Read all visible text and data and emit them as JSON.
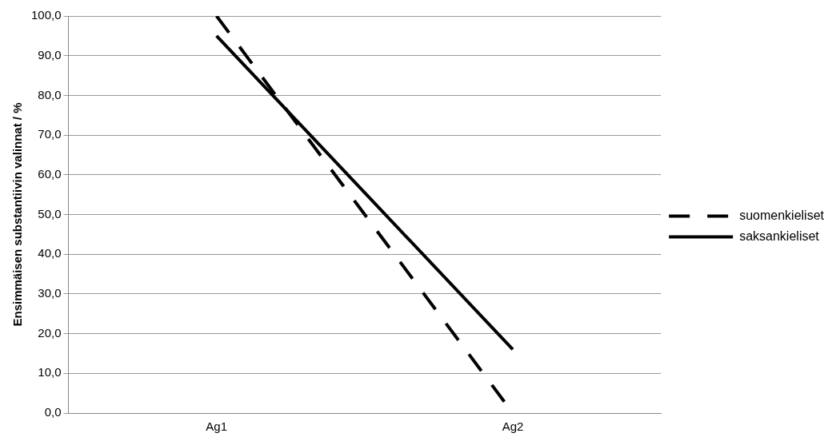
{
  "chart_data": {
    "type": "line",
    "ylabel": "Ensimmäisen substantiivin valinnat / %",
    "categories": [
      "Ag1",
      "Ag2"
    ],
    "series": [
      {
        "name": "suomenkieliset",
        "color": "#000000",
        "values": [
          100,
          0
        ],
        "line_style": "dashed"
      },
      {
        "name": "saksankieliset",
        "color": "#000000",
        "values": [
          95,
          16
        ],
        "line_style": "solid"
      }
    ],
    "ylim": [
      0,
      100
    ],
    "yticks": [
      {
        "value": 0,
        "label": "0,0"
      },
      {
        "value": 10,
        "label": "10,0"
      },
      {
        "value": 20,
        "label": "20,0"
      },
      {
        "value": 30,
        "label": "30,0"
      },
      {
        "value": 40,
        "label": "40,0"
      },
      {
        "value": 50,
        "label": "50,0"
      },
      {
        "value": 60,
        "label": "60,0"
      },
      {
        "value": 70,
        "label": "70,0"
      },
      {
        "value": 80,
        "label": "80,0"
      },
      {
        "value": 90,
        "label": "90,0"
      },
      {
        "value": 100,
        "label": "100,0"
      }
    ],
    "grid": "y",
    "legend": "right",
    "marker": "none"
  }
}
